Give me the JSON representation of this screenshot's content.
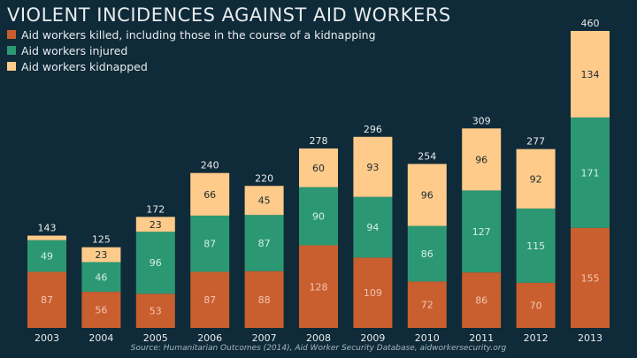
{
  "chart_data": {
    "type": "bar",
    "stacked": true,
    "title": "VIOLENT INCIDENCES AGAINST AID WORKERS",
    "categories": [
      "2003",
      "2004",
      "2005",
      "2006",
      "2007",
      "2008",
      "2009",
      "2010",
      "2011",
      "2012",
      "2013"
    ],
    "series": [
      {
        "name": "Aid workers killed, including those in the course of a kidnapping",
        "color": "#c95e2f",
        "label_color": "#f2c6b0",
        "values": [
          87,
          56,
          53,
          87,
          88,
          128,
          109,
          72,
          86,
          70,
          155
        ]
      },
      {
        "name": "Aid workers injured",
        "color": "#2c9873",
        "label_color": "#d4eee4",
        "values": [
          49,
          46,
          96,
          87,
          87,
          90,
          94,
          86,
          127,
          115,
          171
        ]
      },
      {
        "name": "Aid workers kidnapped",
        "color": "#fecb8a",
        "label_color": "#1d2a30",
        "values": [
          7,
          23,
          23,
          66,
          45,
          60,
          93,
          96,
          96,
          92,
          134
        ]
      }
    ],
    "totals": [
      143,
      125,
      172,
      240,
      220,
      278,
      296,
      254,
      309,
      277,
      460
    ],
    "series_value_labels_shown": [
      [
        true,
        true,
        true,
        true,
        true,
        true,
        true,
        true,
        true,
        true,
        true
      ],
      [
        true,
        true,
        true,
        true,
        true,
        true,
        true,
        true,
        true,
        true,
        true
      ],
      [
        false,
        true,
        true,
        true,
        true,
        true,
        true,
        true,
        true,
        true,
        true
      ]
    ],
    "ylim": [
      0,
      460
    ],
    "grid": false,
    "legend_position": "top-left",
    "source": "Source: Humanitarian Outcomes (2014), Aid Worker Security Database, aidworkersecurity.org"
  }
}
